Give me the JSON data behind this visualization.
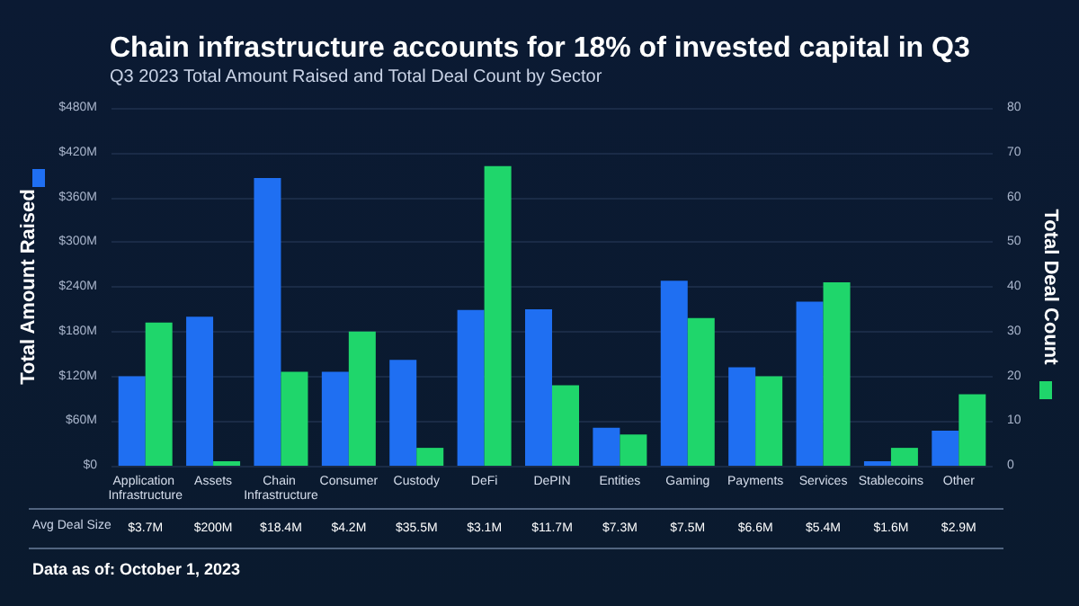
{
  "chart_data": {
    "type": "bar",
    "title": "Chain infrastructure accounts for 18% of invested capital in Q3",
    "subtitle": "Q3 2023 Total Amount Raised and Total Deal Count by Sector",
    "ylabel": "Total Amount Raised",
    "y2label": "Total Deal Count",
    "categories": [
      "Application Infrastructure",
      "Assets",
      "Chain Infrastructure",
      "Consumer",
      "Custody",
      "DeFi",
      "DePIN",
      "Entities",
      "Gaming",
      "Payments",
      "Services",
      "Stablecoins",
      "Other"
    ],
    "series": [
      {
        "color": "#1f6ff2",
        "values": [
          120,
          200,
          386,
          126,
          142,
          209,
          210,
          51,
          248,
          132,
          220,
          6,
          47
        ]
      },
      {
        "color": "#1fd66b",
        "axis": "y2",
        "values": [
          32,
          1,
          21,
          30,
          4,
          67,
          18,
          7,
          33,
          20,
          41,
          4,
          16
        ]
      }
    ],
    "ylim": [
      0,
      480
    ],
    "yticks": [
      {
        "value": 0,
        "label": "$0"
      },
      {
        "value": 60,
        "label": "$60M"
      },
      {
        "value": 120,
        "label": "$120M"
      },
      {
        "value": 180,
        "label": "$180M"
      },
      {
        "value": 240,
        "label": "$240M"
      },
      {
        "value": 300,
        "label": "$300M"
      },
      {
        "value": 360,
        "label": "$360M"
      },
      {
        "value": 420,
        "label": "$420M"
      },
      {
        "value": 480,
        "label": "$480M"
      }
    ],
    "y2lim": [
      0,
      80
    ],
    "y2ticks": [
      0,
      10,
      20,
      30,
      40,
      50,
      60,
      70,
      80
    ],
    "grid": "y",
    "annotations": [
      "Avg Deal Size",
      "$3.7M",
      "$200M",
      "$18.4M",
      "$4.2M",
      "$35.5M",
      "$3.1M",
      "$11.7M",
      "$7.3M",
      "$7.5M",
      "$6.6M",
      "$5.4M",
      "$1.6M",
      "$2.9M",
      "Data as of: October 1, 2023"
    ]
  }
}
